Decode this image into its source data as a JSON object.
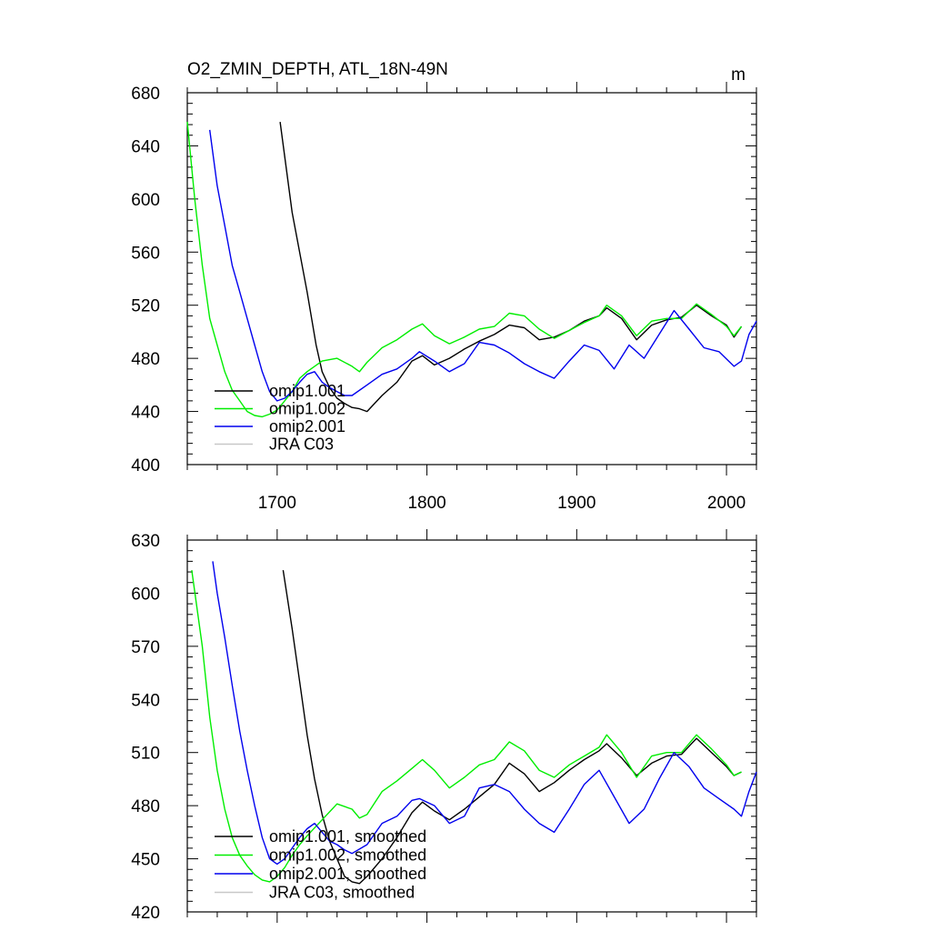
{
  "chart_data": [
    {
      "type": "line",
      "title": "O2_ZMIN_DEPTH, ATL_18N-49N",
      "units": "m",
      "xlim": [
        1640,
        2020
      ],
      "ylim": [
        400,
        680
      ],
      "xticks": [
        1700,
        1800,
        1900,
        2000
      ],
      "yticks": [
        400,
        440,
        480,
        520,
        560,
        600,
        640,
        680
      ],
      "show_x_tick_labels": true,
      "legend_position": "bottom-left",
      "series": [
        {
          "name": "omip1.001",
          "color": "#000000",
          "x": [
            1702,
            1710,
            1720,
            1726,
            1730,
            1735,
            1740,
            1745,
            1750,
            1755,
            1760,
            1770,
            1780,
            1790,
            1797,
            1805,
            1815,
            1825,
            1835,
            1845,
            1855,
            1865,
            1875,
            1885,
            1895,
            1905,
            1915,
            1920,
            1930,
            1940,
            1950,
            1960,
            1970,
            1980,
            1990,
            2000,
            2005,
            2010
          ],
          "y": [
            658,
            590,
            530,
            490,
            470,
            458,
            450,
            446,
            443,
            442,
            440,
            452,
            462,
            478,
            482,
            475,
            480,
            487,
            493,
            498,
            505,
            503,
            494,
            496,
            501,
            508,
            512,
            518,
            510,
            494,
            505,
            509,
            511,
            520,
            512,
            505,
            496,
            504
          ]
        },
        {
          "name": "omip1.002",
          "color": "#00ee00",
          "x": [
            1640,
            1645,
            1650,
            1655,
            1660,
            1665,
            1670,
            1675,
            1680,
            1685,
            1690,
            1695,
            1700,
            1705,
            1710,
            1715,
            1720,
            1730,
            1740,
            1750,
            1755,
            1760,
            1770,
            1780,
            1790,
            1797,
            1805,
            1815,
            1825,
            1835,
            1845,
            1855,
            1865,
            1875,
            1885,
            1895,
            1905,
            1915,
            1920,
            1930,
            1940,
            1950,
            1960,
            1970,
            1980,
            1990,
            2000,
            2005,
            2010
          ],
          "y": [
            658,
            600,
            550,
            510,
            490,
            470,
            456,
            448,
            440,
            437,
            436,
            438,
            441,
            448,
            455,
            465,
            470,
            478,
            480,
            474,
            470,
            477,
            488,
            494,
            502,
            506,
            497,
            491,
            496,
            502,
            504,
            514,
            512,
            502,
            495,
            501,
            507,
            512,
            520,
            512,
            497,
            508,
            510,
            510,
            521,
            513,
            504,
            497,
            504
          ]
        },
        {
          "name": "omip2.001",
          "color": "#0000ee",
          "x": [
            1655,
            1660,
            1665,
            1670,
            1675,
            1680,
            1685,
            1690,
            1695,
            1700,
            1705,
            1710,
            1715,
            1720,
            1725,
            1730,
            1735,
            1740,
            1745,
            1750,
            1760,
            1770,
            1780,
            1790,
            1795,
            1805,
            1815,
            1825,
            1835,
            1845,
            1855,
            1865,
            1875,
            1885,
            1895,
            1905,
            1915,
            1925,
            1935,
            1945,
            1955,
            1965,
            1975,
            1985,
            1995,
            2005,
            2010,
            2015,
            2020
          ],
          "y": [
            652,
            610,
            580,
            550,
            530,
            510,
            490,
            470,
            455,
            448,
            450,
            455,
            462,
            468,
            470,
            462,
            458,
            455,
            452,
            452,
            460,
            468,
            472,
            480,
            485,
            478,
            470,
            476,
            492,
            490,
            484,
            476,
            470,
            465,
            478,
            490,
            486,
            472,
            490,
            480,
            498,
            516,
            502,
            488,
            485,
            474,
            478,
            498,
            508
          ]
        },
        {
          "name": "JRA C03",
          "color": "#c8c8c8",
          "x": [],
          "y": []
        }
      ]
    },
    {
      "type": "line",
      "title": "",
      "xlim": [
        1640,
        2020
      ],
      "ylim": [
        420,
        630
      ],
      "xticks": [
        1700,
        1800,
        1900,
        2000
      ],
      "yticks": [
        420,
        450,
        480,
        510,
        540,
        570,
        600,
        630
      ],
      "show_x_tick_labels": false,
      "legend_position": "bottom-left",
      "series": [
        {
          "name": "omip1.001, smoothed",
          "color": "#000000",
          "x": [
            1704,
            1710,
            1715,
            1720,
            1725,
            1730,
            1735,
            1740,
            1745,
            1750,
            1755,
            1760,
            1770,
            1780,
            1790,
            1797,
            1805,
            1815,
            1825,
            1835,
            1845,
            1855,
            1865,
            1875,
            1885,
            1895,
            1905,
            1915,
            1920,
            1930,
            1940,
            1950,
            1960,
            1970,
            1980,
            1990,
            2000,
            2005,
            2010
          ],
          "y": [
            613,
            580,
            550,
            520,
            495,
            475,
            460,
            450,
            440,
            437,
            436,
            440,
            450,
            462,
            476,
            482,
            477,
            472,
            478,
            485,
            492,
            504,
            498,
            488,
            493,
            500,
            506,
            511,
            515,
            507,
            497,
            504,
            508,
            509,
            518,
            510,
            502,
            497,
            499
          ]
        },
        {
          "name": "omip1.002, smoothed",
          "color": "#00ee00",
          "x": [
            1643,
            1650,
            1655,
            1660,
            1665,
            1670,
            1675,
            1680,
            1685,
            1690,
            1695,
            1700,
            1705,
            1710,
            1715,
            1720,
            1730,
            1740,
            1750,
            1755,
            1760,
            1770,
            1780,
            1790,
            1797,
            1805,
            1815,
            1825,
            1835,
            1845,
            1855,
            1865,
            1875,
            1885,
            1895,
            1905,
            1915,
            1920,
            1930,
            1940,
            1950,
            1960,
            1970,
            1980,
            1990,
            2000,
            2005,
            2010
          ],
          "y": [
            613,
            570,
            530,
            500,
            478,
            462,
            452,
            446,
            441,
            438,
            437,
            440,
            445,
            452,
            458,
            463,
            472,
            481,
            478,
            473,
            475,
            488,
            494,
            501,
            506,
            500,
            490,
            496,
            503,
            506,
            516,
            511,
            500,
            496,
            503,
            508,
            513,
            520,
            510,
            496,
            508,
            510,
            510,
            520,
            512,
            503,
            497,
            499
          ]
        },
        {
          "name": "omip2.001, smoothed",
          "color": "#0000ee",
          "x": [
            1657,
            1660,
            1665,
            1670,
            1675,
            1680,
            1685,
            1690,
            1695,
            1700,
            1705,
            1710,
            1715,
            1720,
            1725,
            1730,
            1735,
            1740,
            1745,
            1750,
            1760,
            1770,
            1780,
            1790,
            1795,
            1805,
            1815,
            1825,
            1835,
            1845,
            1855,
            1865,
            1875,
            1885,
            1895,
            1905,
            1915,
            1925,
            1935,
            1945,
            1955,
            1965,
            1975,
            1985,
            1995,
            2005,
            2010,
            2015,
            2020
          ],
          "y": [
            618,
            600,
            575,
            548,
            522,
            500,
            480,
            462,
            450,
            447,
            450,
            456,
            462,
            467,
            470,
            465,
            460,
            458,
            455,
            453,
            458,
            470,
            474,
            483,
            484,
            480,
            470,
            474,
            490,
            492,
            488,
            478,
            470,
            465,
            478,
            492,
            500,
            485,
            470,
            478,
            495,
            510,
            502,
            490,
            484,
            478,
            474,
            488,
            499
          ]
        },
        {
          "name": "JRA C03, smoothed",
          "color": "#c8c8c8",
          "x": [],
          "y": []
        }
      ]
    }
  ]
}
